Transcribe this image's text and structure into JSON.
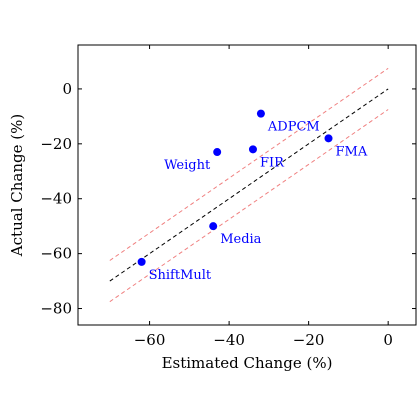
{
  "chart_data": {
    "type": "scatter",
    "title": "",
    "xlabel": "Estimated Change (%)",
    "ylabel": "Actual Change (%)",
    "xlim": [
      -78,
      7
    ],
    "ylim": [
      -86,
      16
    ],
    "x_ticks": [
      {
        "value": -60,
        "label": "−60"
      },
      {
        "value": -40,
        "label": "−40"
      },
      {
        "value": -20,
        "label": "−20"
      },
      {
        "value": 0,
        "label": "0"
      }
    ],
    "y_ticks": [
      {
        "value": 0,
        "label": "0"
      },
      {
        "value": -20,
        "label": "−20"
      },
      {
        "value": -40,
        "label": "−40"
      },
      {
        "value": -60,
        "label": "−60"
      },
      {
        "value": -80,
        "label": "−80"
      }
    ],
    "grid": false,
    "point_color": "#0000ff",
    "points": [
      {
        "label": "ADPCM",
        "x": -32,
        "y": -9,
        "label_side": "below-right"
      },
      {
        "label": "FMA",
        "x": -15,
        "y": -18,
        "label_side": "below-right"
      },
      {
        "label": "FIR",
        "x": -34,
        "y": -22,
        "label_side": "below-right"
      },
      {
        "label": "Weight",
        "x": -43,
        "y": -23,
        "label_side": "below-left"
      },
      {
        "label": "Media",
        "x": -44,
        "y": -50,
        "label_side": "below-right"
      },
      {
        "label": "ShiftMult",
        "x": -62,
        "y": -63,
        "label_side": "below-right"
      }
    ],
    "reference_lines": [
      {
        "kind": "identity",
        "style": "dashed",
        "color": "#000000",
        "x": [
          -70,
          0
        ],
        "y": [
          -70,
          0
        ]
      },
      {
        "kind": "upper-band",
        "style": "dashed",
        "color": "#f08080",
        "x": [
          -70,
          0
        ],
        "y": [
          -62.5,
          7.5
        ]
      },
      {
        "kind": "lower-band",
        "style": "dashed",
        "color": "#f08080",
        "x": [
          -70,
          0
        ],
        "y": [
          -77.5,
          -7.5
        ]
      }
    ]
  }
}
